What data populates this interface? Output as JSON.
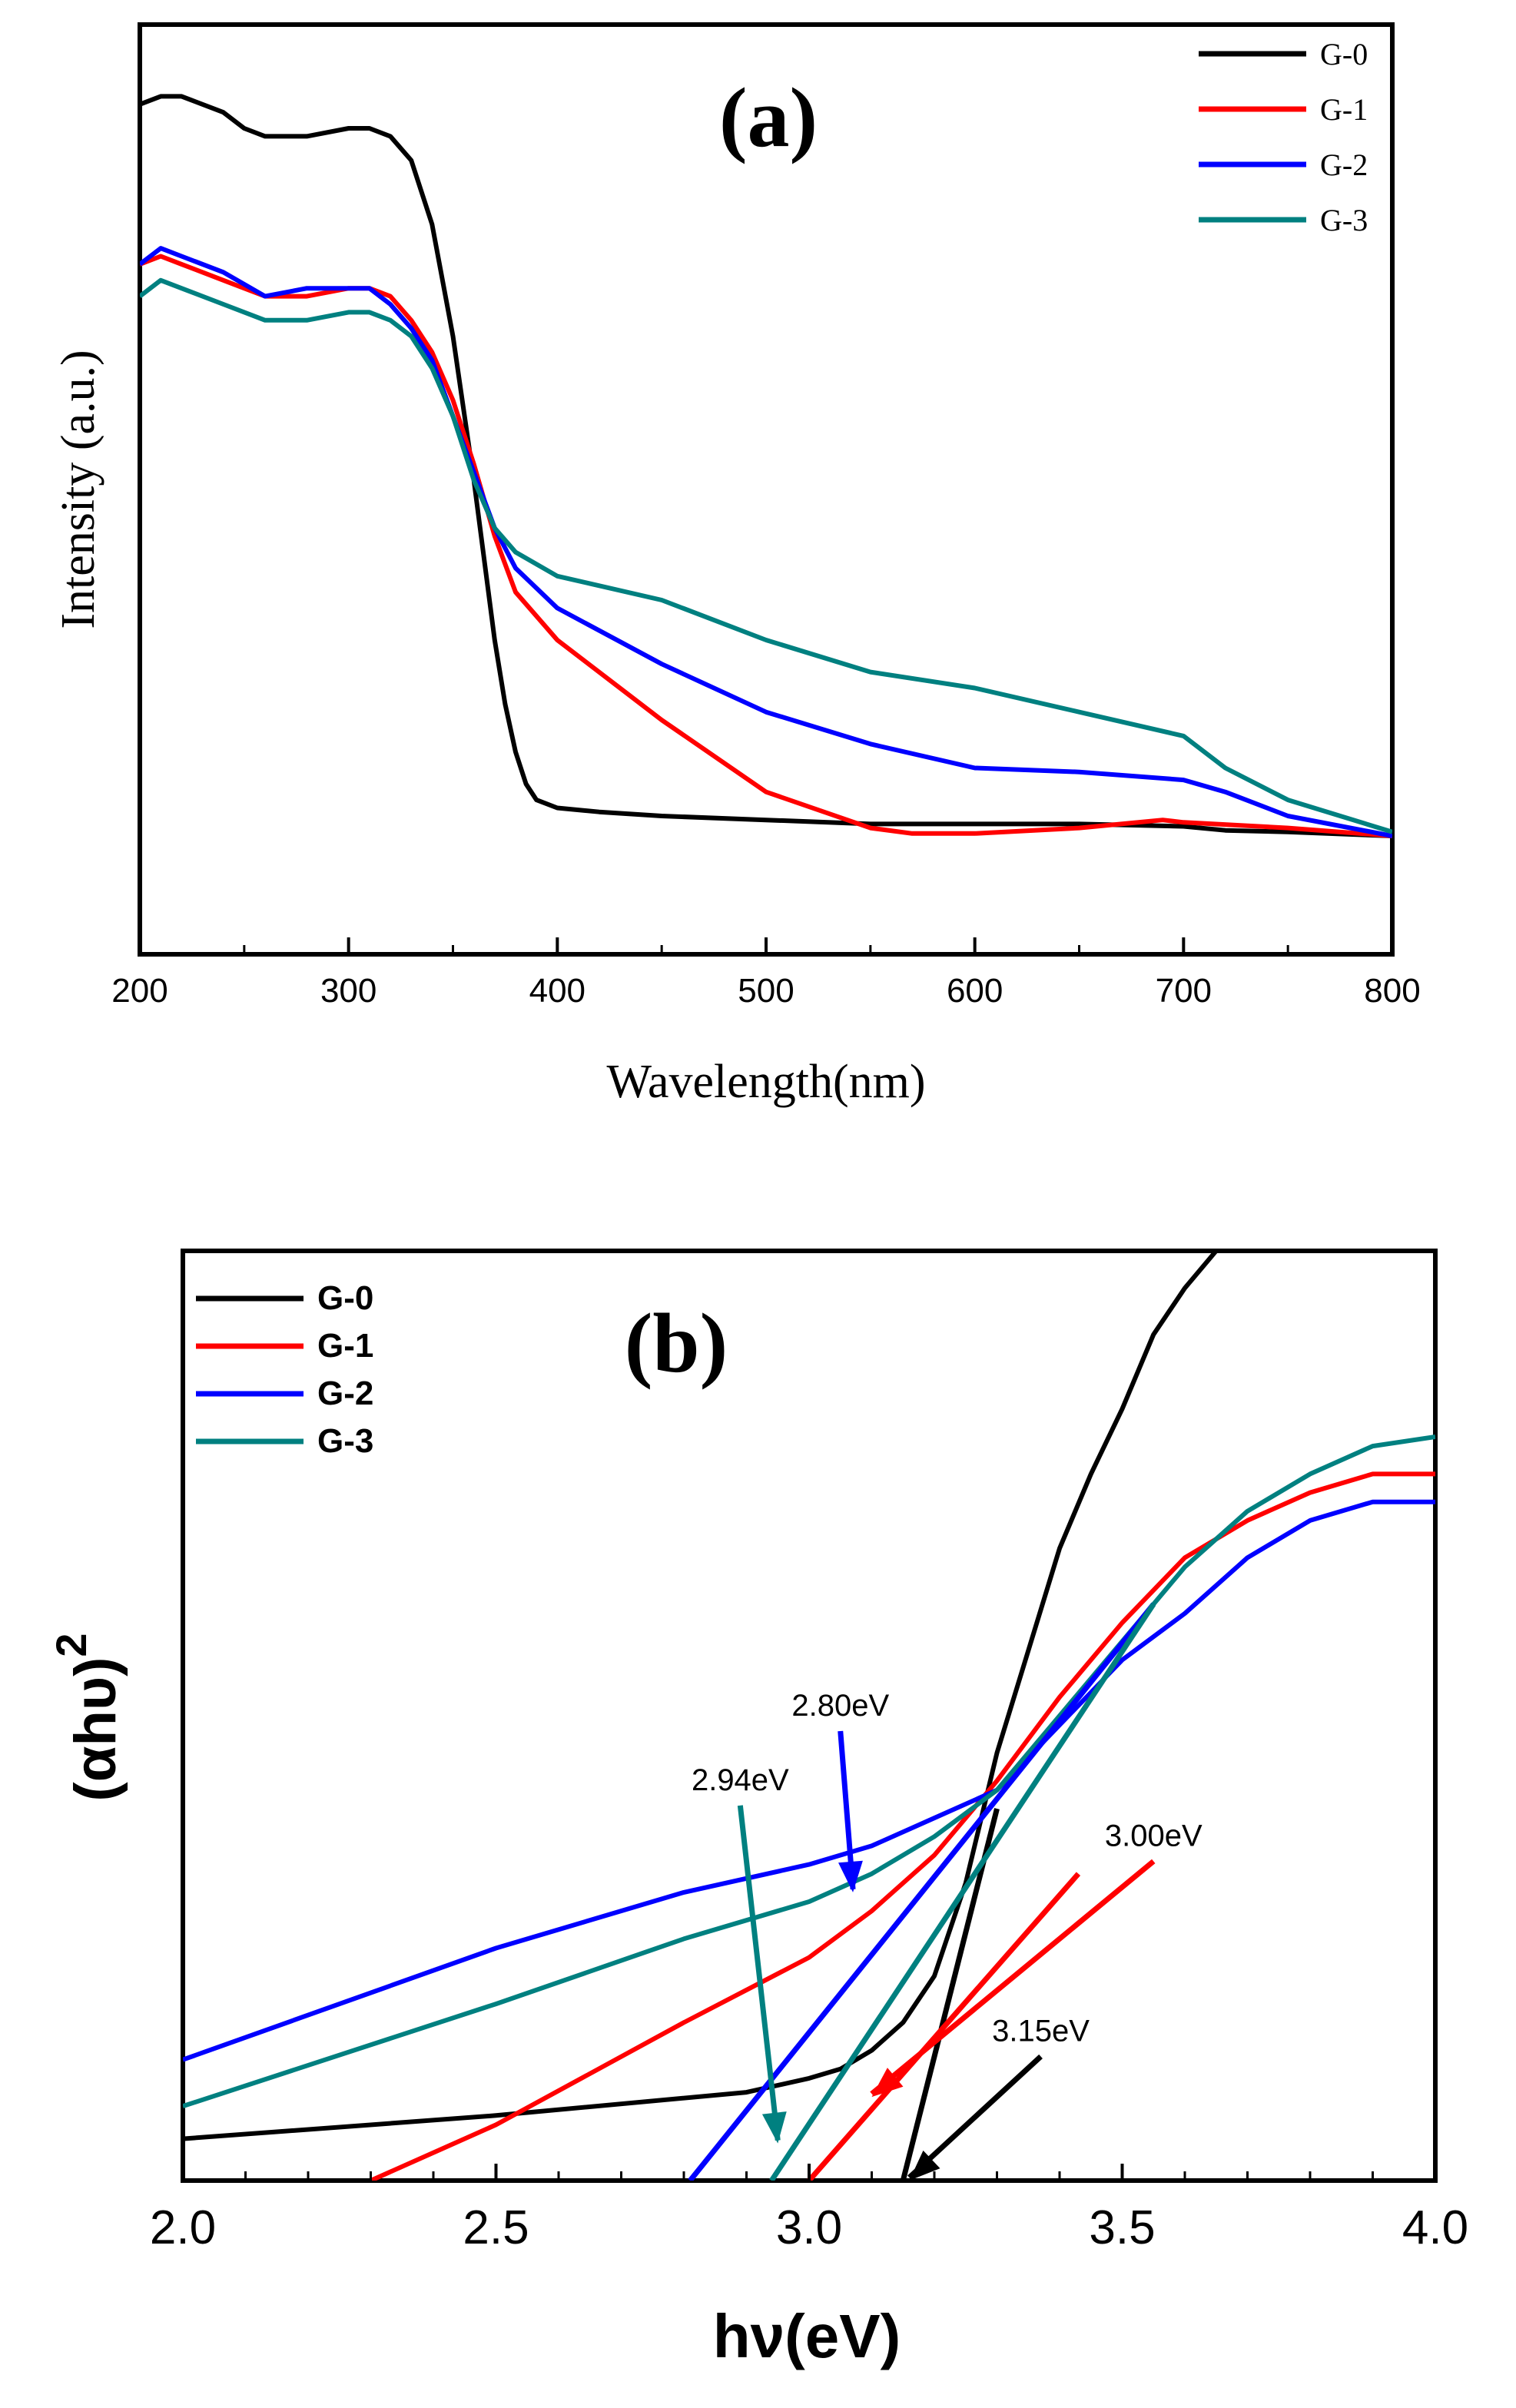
{
  "chart_data": [
    {
      "id": "a",
      "type": "line",
      "panel_label": "(a)",
      "title": "",
      "xlabel": "Wavelength(nm)",
      "ylabel": "Intensity (a.u.)",
      "xlim": [
        200,
        800
      ],
      "ylim": [
        0,
        1.0
      ],
      "x_ticks": [
        "200",
        "300",
        "400",
        "500",
        "600",
        "700",
        "800"
      ],
      "y_ticks": [],
      "legend_position": "top-right",
      "colors": {
        "G-0": "#000000",
        "G-1": "#ff0000",
        "G-2": "#0000ff",
        "G-3": "#008080"
      },
      "series": [
        {
          "name": "G-0",
          "x": [
            200,
            210,
            220,
            240,
            250,
            260,
            270,
            280,
            300,
            310,
            320,
            330,
            340,
            350,
            360,
            370,
            375,
            380,
            385,
            390,
            400,
            420,
            450,
            500,
            550,
            600,
            650,
            700,
            720,
            750,
            800
          ],
          "y": [
            0.97,
            0.98,
            0.98,
            0.96,
            0.94,
            0.93,
            0.93,
            0.93,
            0.94,
            0.94,
            0.93,
            0.9,
            0.82,
            0.68,
            0.5,
            0.3,
            0.22,
            0.16,
            0.12,
            0.1,
            0.09,
            0.085,
            0.08,
            0.075,
            0.07,
            0.07,
            0.07,
            0.067,
            0.062,
            0.06,
            0.055
          ]
        },
        {
          "name": "G-1",
          "x": [
            200,
            210,
            220,
            240,
            260,
            280,
            300,
            310,
            320,
            330,
            340,
            350,
            360,
            370,
            380,
            400,
            450,
            500,
            550,
            570,
            600,
            650,
            690,
            700,
            750,
            800
          ],
          "y": [
            0.77,
            0.78,
            0.77,
            0.75,
            0.73,
            0.73,
            0.74,
            0.74,
            0.73,
            0.7,
            0.66,
            0.6,
            0.52,
            0.43,
            0.36,
            0.3,
            0.2,
            0.11,
            0.065,
            0.058,
            0.058,
            0.065,
            0.075,
            0.072,
            0.065,
            0.055
          ]
        },
        {
          "name": "G-2",
          "x": [
            200,
            210,
            220,
            240,
            260,
            280,
            300,
            310,
            320,
            330,
            340,
            350,
            360,
            370,
            380,
            400,
            450,
            500,
            550,
            600,
            650,
            700,
            720,
            750,
            800
          ],
          "y": [
            0.77,
            0.79,
            0.78,
            0.76,
            0.73,
            0.74,
            0.74,
            0.74,
            0.72,
            0.69,
            0.65,
            0.58,
            0.51,
            0.44,
            0.39,
            0.34,
            0.27,
            0.21,
            0.17,
            0.14,
            0.135,
            0.125,
            0.11,
            0.08,
            0.055
          ]
        },
        {
          "name": "G-3",
          "x": [
            200,
            210,
            220,
            240,
            260,
            280,
            300,
            310,
            320,
            330,
            340,
            350,
            360,
            370,
            380,
            400,
            450,
            500,
            550,
            600,
            650,
            700,
            720,
            750,
            800
          ],
          "y": [
            0.73,
            0.75,
            0.74,
            0.72,
            0.7,
            0.7,
            0.71,
            0.71,
            0.7,
            0.68,
            0.64,
            0.58,
            0.5,
            0.44,
            0.41,
            0.38,
            0.35,
            0.3,
            0.26,
            0.24,
            0.21,
            0.18,
            0.14,
            0.1,
            0.06
          ]
        }
      ]
    },
    {
      "id": "b",
      "type": "line",
      "panel_label": "(b)",
      "title": "",
      "xlabel": "hν(eV)",
      "ylabel": "(αhυ)",
      "ylabel_superscript": "2",
      "xlim": [
        2.0,
        4.0
      ],
      "ylim": [
        0,
        1.0
      ],
      "x_ticks": [
        "2.0",
        "2.5",
        "3.0",
        "3.5",
        "4.0"
      ],
      "y_ticks": [],
      "legend_position": "top-left",
      "colors": {
        "G-0": "#000000",
        "G-1": "#ff0000",
        "G-2": "#0000ff",
        "G-3": "#008080"
      },
      "series": [
        {
          "name": "G-0",
          "x": [
            2.0,
            2.5,
            2.9,
            3.0,
            3.05,
            3.1,
            3.15,
            3.2,
            3.25,
            3.3,
            3.35,
            3.4,
            3.45,
            3.5,
            3.55,
            3.6,
            3.65
          ],
          "y": [
            0.045,
            0.07,
            0.095,
            0.11,
            0.12,
            0.14,
            0.17,
            0.22,
            0.32,
            0.46,
            0.57,
            0.68,
            0.76,
            0.83,
            0.91,
            0.96,
            1.0
          ]
        },
        {
          "name": "G-1",
          "x": [
            2.3,
            2.5,
            2.8,
            3.0,
            3.1,
            3.2,
            3.3,
            3.4,
            3.5,
            3.6,
            3.7,
            3.8,
            3.9,
            4.0
          ],
          "y": [
            0.0,
            0.06,
            0.17,
            0.24,
            0.29,
            0.35,
            0.43,
            0.52,
            0.6,
            0.67,
            0.71,
            0.74,
            0.76,
            0.76
          ]
        },
        {
          "name": "G-2",
          "x": [
            2.0,
            2.5,
            2.8,
            3.0,
            3.1,
            3.2,
            3.3,
            3.4,
            3.5,
            3.6,
            3.7,
            3.8,
            3.9,
            4.0
          ],
          "y": [
            0.13,
            0.25,
            0.31,
            0.34,
            0.36,
            0.39,
            0.42,
            0.49,
            0.56,
            0.61,
            0.67,
            0.71,
            0.73,
            0.73
          ]
        },
        {
          "name": "G-3",
          "x": [
            2.0,
            2.5,
            2.8,
            3.0,
            3.1,
            3.2,
            3.3,
            3.4,
            3.5,
            3.6,
            3.7,
            3.8,
            3.9,
            4.0
          ],
          "y": [
            0.08,
            0.19,
            0.26,
            0.3,
            0.33,
            0.37,
            0.42,
            0.5,
            0.58,
            0.66,
            0.72,
            0.76,
            0.79,
            0.8
          ]
        }
      ],
      "tangents": [
        {
          "name": "G-0",
          "color": "#000000",
          "x": [
            3.15,
            3.3
          ],
          "y": [
            0.0,
            0.4
          ]
        },
        {
          "name": "G-1",
          "color": "#ff0000",
          "x": [
            3.0,
            3.43
          ],
          "y": [
            0.0,
            0.33
          ]
        },
        {
          "name": "G-2",
          "color": "#0000ff",
          "x": [
            2.81,
            3.55
          ],
          "y": [
            0.0,
            0.62
          ]
        },
        {
          "name": "G-3",
          "color": "#008080",
          "x": [
            2.94,
            3.55
          ],
          "y": [
            0.0,
            0.62
          ]
        }
      ],
      "annotations": [
        {
          "text": "2.80eV",
          "color": "#0000ff",
          "x": 3.07,
          "y": 0.31,
          "label_x": 3.05,
          "label_y": 0.5
        },
        {
          "text": "2.94eV",
          "color": "#008080",
          "x": 2.95,
          "y": 0.04,
          "label_x": 2.89,
          "label_y": 0.42
        },
        {
          "text": "3.00eV",
          "color": "#ff0000",
          "x": 3.1,
          "y": 0.09,
          "label_x": 3.55,
          "label_y": 0.36
        },
        {
          "text": "3.15eV",
          "color": "#000000",
          "x": 3.16,
          "y": 0.0,
          "label_x": 3.37,
          "label_y": 0.15
        }
      ]
    }
  ]
}
